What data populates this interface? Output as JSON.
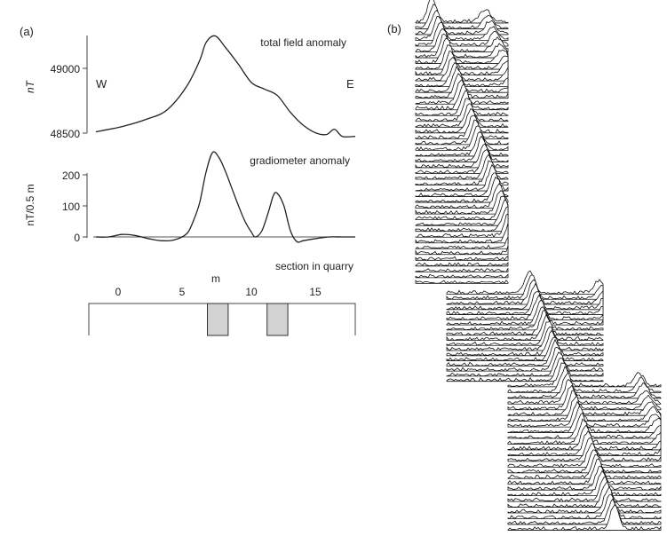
{
  "panel_a_label": "(a)",
  "panel_b_label": "(b)",
  "chart_data": [
    {
      "type": "line",
      "title": "total field anomaly",
      "ylabel": "nT",
      "yticks": [
        "48500",
        "49000"
      ],
      "ylim": [
        48450,
        49270
      ],
      "xlim": [
        -2.2,
        18.0
      ],
      "annotations": {
        "west": "W",
        "east": "E"
      },
      "series": [
        {
          "x": [
            -2,
            0,
            2,
            3.5,
            5,
            6,
            6.5,
            7.2,
            8,
            9,
            10,
            11,
            12,
            13,
            14,
            15,
            15.8,
            16.4,
            17,
            18
          ],
          "y": [
            48510,
            48550,
            48610,
            48680,
            48860,
            49060,
            49200,
            49250,
            49160,
            49030,
            48890,
            48840,
            48790,
            48660,
            48560,
            48500,
            48490,
            48530,
            48475,
            48475
          ]
        }
      ]
    },
    {
      "type": "line",
      "title": "gradiometer anomaly",
      "ylabel": "nT/0.5 m",
      "yticks": [
        "0",
        "100",
        "200"
      ],
      "ylim": [
        -15,
        215
      ],
      "xlim": [
        -2.2,
        18.0
      ],
      "baseline": 0,
      "series": [
        {
          "x": [
            -2,
            -1,
            0,
            1,
            2,
            3,
            4,
            5,
            5.5,
            6,
            6.5,
            7,
            7.5,
            8,
            8.5,
            9,
            9.5,
            10,
            10.3,
            10.8,
            11.3,
            11.7,
            12,
            12.5,
            13,
            13.5,
            14,
            15,
            16,
            17,
            18
          ],
          "y": [
            0,
            0,
            8,
            5,
            -5,
            -12,
            -10,
            10,
            50,
            110,
            210,
            272,
            255,
            210,
            155,
            100,
            50,
            15,
            0,
            20,
            80,
            135,
            140,
            100,
            20,
            -15,
            -12,
            -5,
            0,
            0,
            0
          ]
        }
      ]
    },
    {
      "type": "bar",
      "title": "section in quarry",
      "xlabel": "m",
      "xticks": [
        "0",
        "5",
        "10",
        "15"
      ],
      "xlim": [
        -2.2,
        18.0
      ],
      "bars": [
        {
          "start": 6.6,
          "end": 8.2
        },
        {
          "start": 11.2,
          "end": 12.8
        }
      ],
      "colors": {
        "bar_fill": "#d2d2d2"
      }
    }
  ]
}
